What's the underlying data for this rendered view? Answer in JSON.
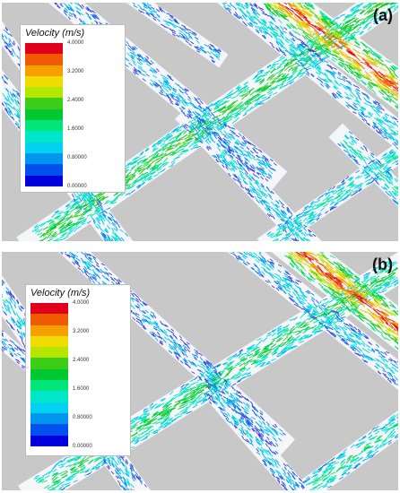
{
  "panels": [
    {
      "tag": "(a)",
      "legend": {
        "title": "Velocity (m/s)",
        "labels": [
          "4.0000",
          "3.2000",
          "2.4000",
          "1.6000",
          "0.80000",
          "0.00000"
        ]
      }
    },
    {
      "tag": "(b)",
      "legend": {
        "title": "Velocity (m/s)",
        "labels": [
          "4.0000",
          "3.2000",
          "2.4000",
          "1.6000",
          "0.80000",
          "0.00000"
        ]
      }
    }
  ],
  "colors": {
    "background": "#c8c8c8",
    "channel": "#f4f6fa",
    "scale": [
      "#e0001c",
      "#f05a00",
      "#f5a000",
      "#f0dc00",
      "#b4e600",
      "#3ccd19",
      "#00c832",
      "#00e678",
      "#00e6c8",
      "#00d2f0",
      "#0096f0",
      "#0050f0",
      "#0000dc"
    ]
  },
  "icons": [
    "velocity-vector-field",
    "color-scale"
  ]
}
